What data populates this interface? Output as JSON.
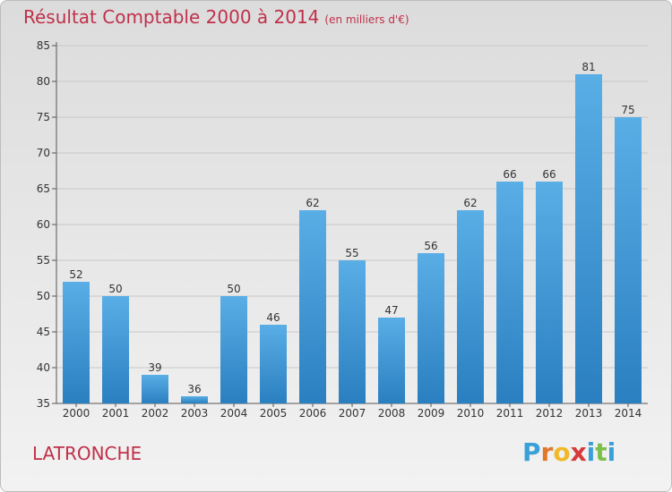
{
  "header": {
    "title": "Résultat Comptable 2000 à 2014",
    "unit": "(en milliers d'€)"
  },
  "footer": {
    "city": "LATRONCHE",
    "logo_letters": [
      "P",
      "r",
      "o",
      "x",
      "i",
      "t",
      "i"
    ],
    "logo_colors": [
      "#3aa0d8",
      "#e0782a",
      "#f0b928",
      "#d63a3a",
      "#3aa0d8",
      "#7cc04a",
      "#3aa0d8"
    ]
  },
  "colors": {
    "title": "#c0304a",
    "bar_top": "#5aaee6",
    "bar_bottom": "#2a7fc0",
    "grid": "#c8c8c8"
  },
  "chart_data": {
    "type": "bar",
    "title": "Résultat Comptable 2000 à 2014",
    "subtitle": "(en milliers d'€)",
    "categories": [
      "2000",
      "2001",
      "2002",
      "2003",
      "2004",
      "2005",
      "2006",
      "2007",
      "2008",
      "2009",
      "2010",
      "2011",
      "2012",
      "2013",
      "2014"
    ],
    "values": [
      52,
      50,
      39,
      36,
      50,
      46,
      62,
      55,
      47,
      56,
      62,
      66,
      66,
      81,
      75
    ],
    "ylim": [
      35,
      85
    ],
    "yticks": [
      35,
      40,
      45,
      50,
      55,
      60,
      65,
      70,
      75,
      80,
      85
    ],
    "grid": true,
    "data_labels": true
  }
}
